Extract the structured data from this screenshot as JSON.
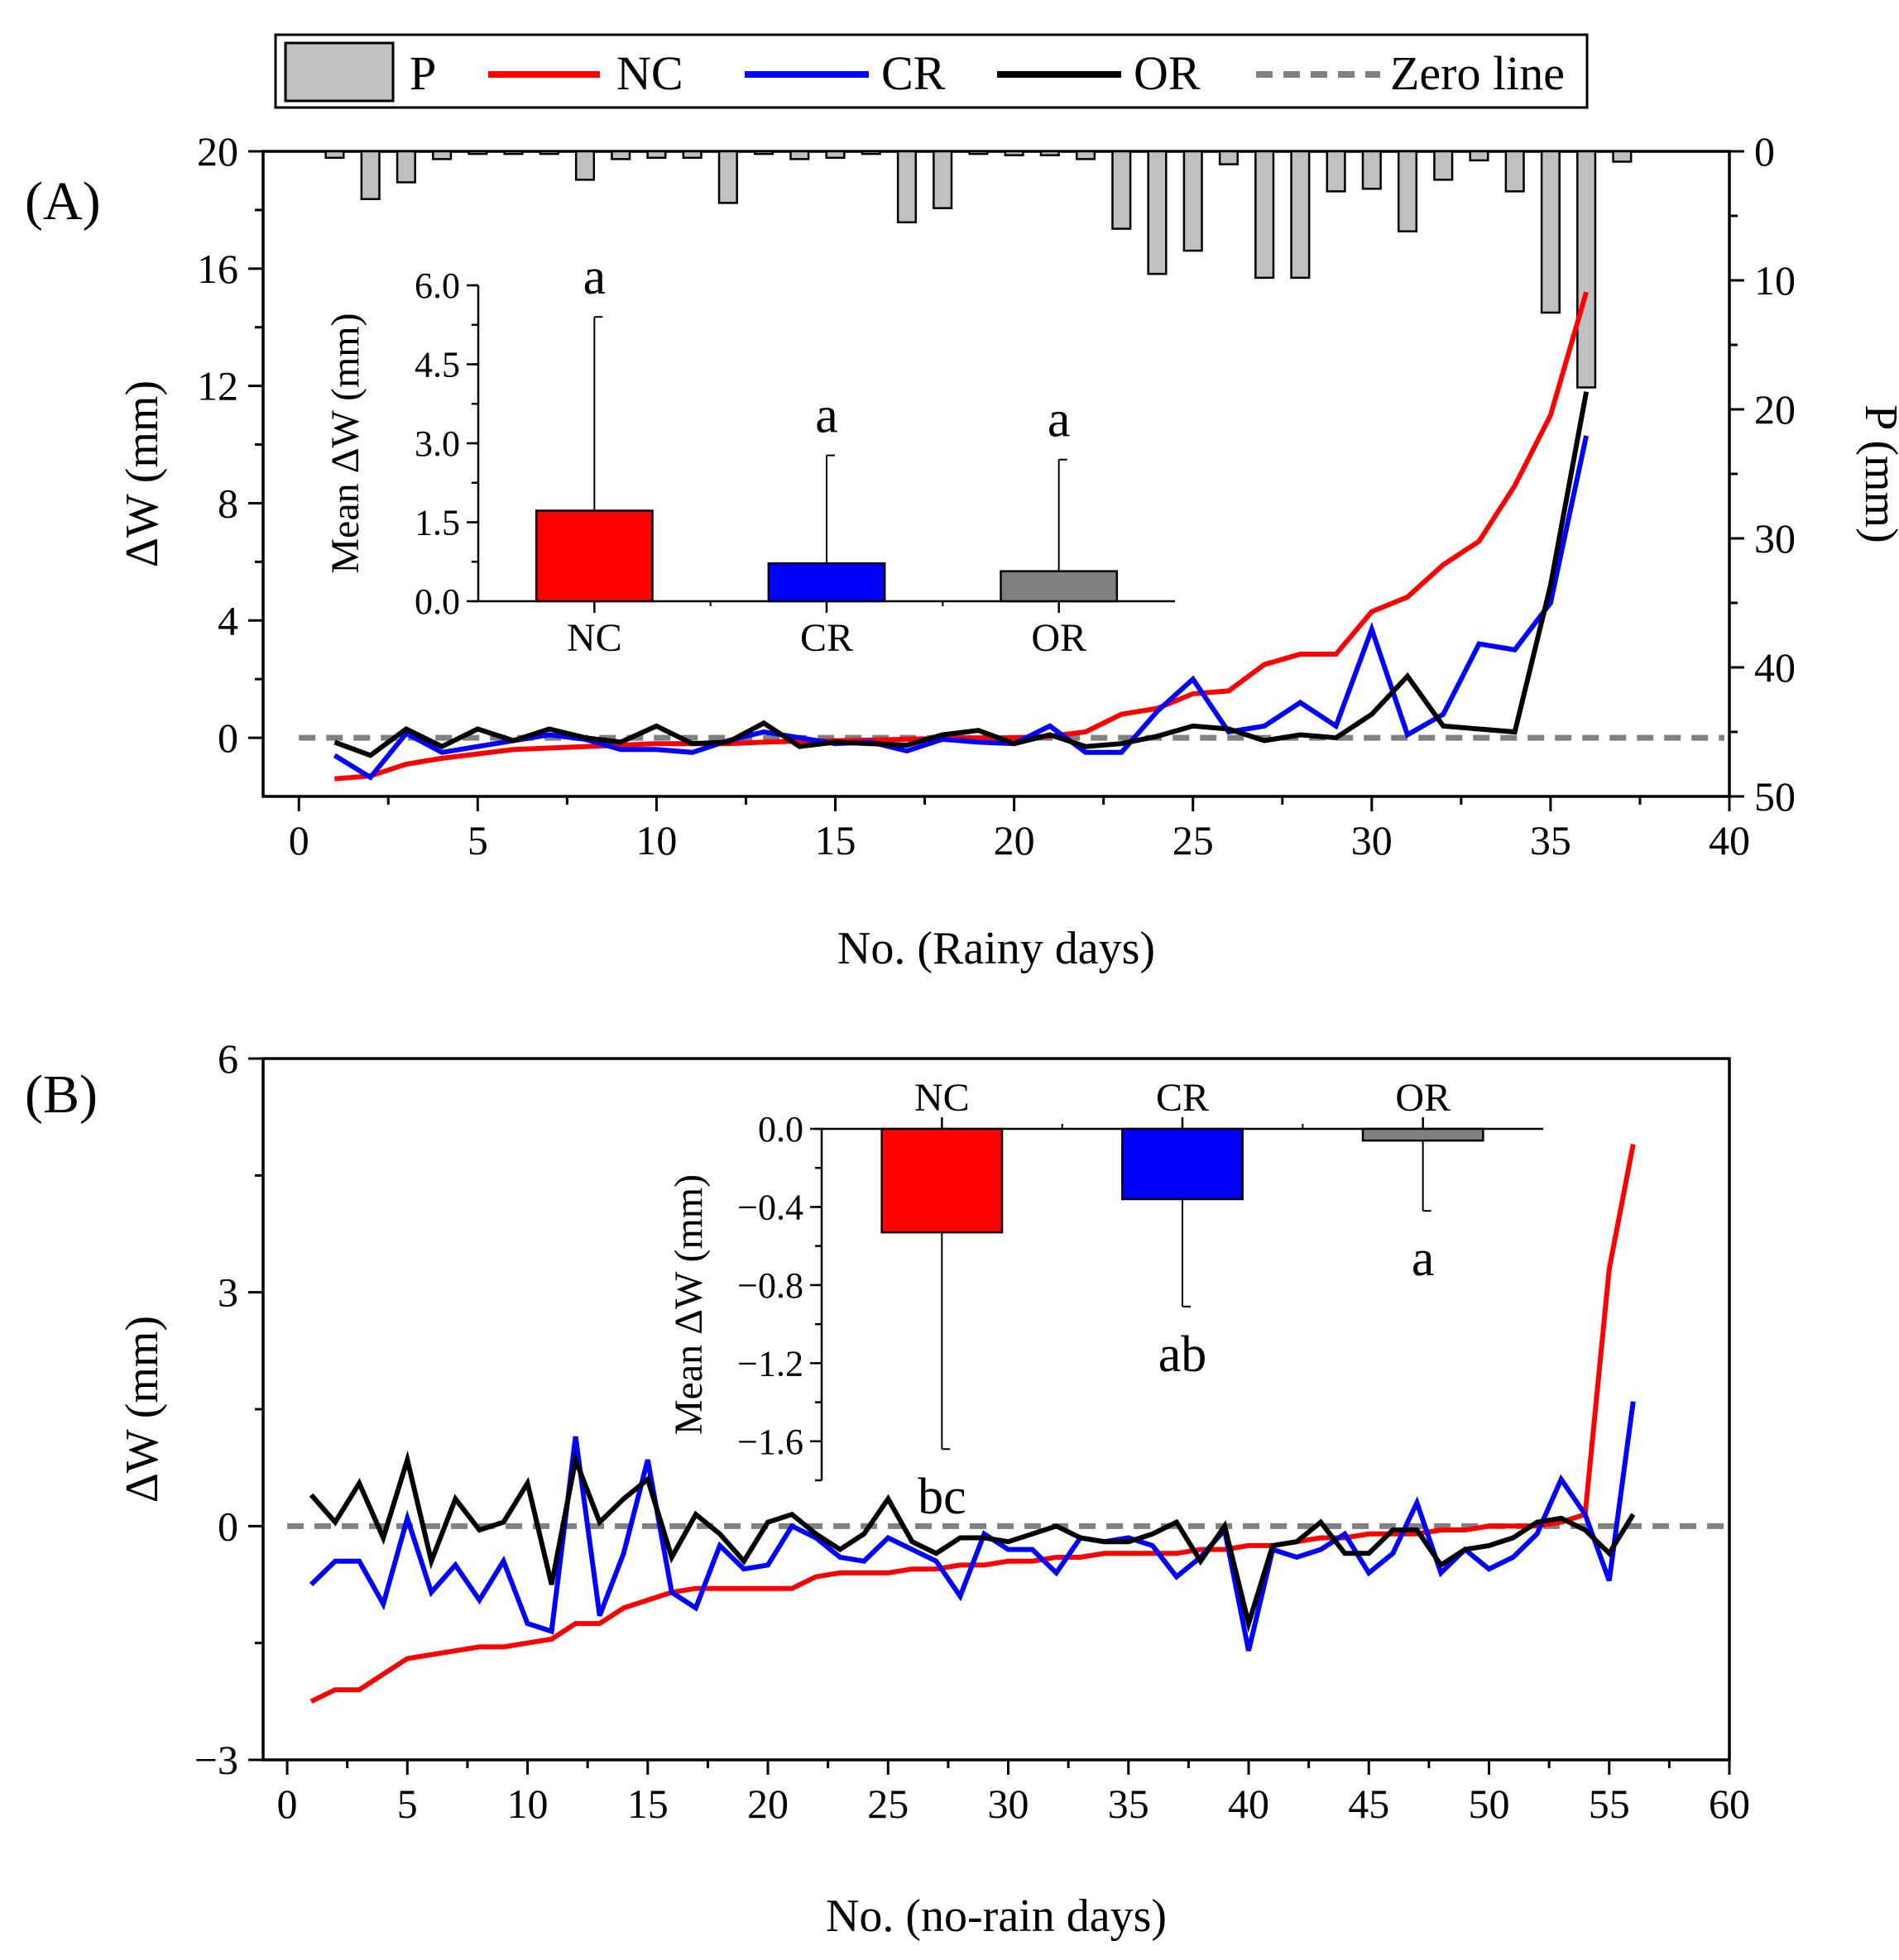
{
  "legend": {
    "items": [
      {
        "key": "P",
        "label": "P",
        "type": "bar",
        "color": "#c0c0c0"
      },
      {
        "key": "NC",
        "label": "NC",
        "type": "line",
        "color": "#ff0000"
      },
      {
        "key": "CR",
        "label": "CR",
        "type": "line",
        "color": "#0000ff"
      },
      {
        "key": "OR",
        "label": "OR",
        "type": "line",
        "color": "#000000"
      },
      {
        "key": "ZERO",
        "label": "Zero line",
        "type": "dash",
        "color": "#808080"
      }
    ]
  },
  "chart_data": [
    {
      "id": "A",
      "type": "line",
      "panel_label": "(A)",
      "xlabel": "No. (Rainy days)",
      "ylabel": "ΔW (mm)",
      "y2label": "P (mm)",
      "xlim": [
        -1,
        40
      ],
      "ylim": [
        -2,
        20
      ],
      "y2lim": [
        50,
        0
      ],
      "xticks": [
        0,
        5,
        10,
        15,
        20,
        25,
        30,
        35,
        40
      ],
      "yticks": [
        0,
        4,
        8,
        12,
        16,
        20
      ],
      "y2ticks": [
        0,
        10,
        20,
        30,
        40,
        50
      ],
      "x": [
        1,
        2,
        3,
        4,
        5,
        6,
        7,
        8,
        9,
        10,
        11,
        12,
        13,
        14,
        15,
        16,
        17,
        18,
        19,
        20,
        21,
        22,
        23,
        24,
        25,
        26,
        27,
        28,
        29,
        30,
        31,
        32,
        33,
        34,
        35,
        36
      ],
      "series": [
        {
          "name": "NC",
          "color": "#ff0000",
          "values": [
            -1.4,
            -1.3,
            -0.9,
            -0.7,
            -0.55,
            -0.4,
            -0.35,
            -0.3,
            -0.25,
            -0.2,
            -0.2,
            -0.2,
            -0.15,
            -0.12,
            -0.1,
            -0.08,
            -0.05,
            -0.02,
            0,
            0,
            0.05,
            0.2,
            0.8,
            1.0,
            1.5,
            1.6,
            2.5,
            2.85,
            2.85,
            4.3,
            4.8,
            5.9,
            6.7,
            8.6,
            11.0,
            15.2
          ]
        },
        {
          "name": "CR",
          "color": "#0000ff",
          "values": [
            -0.6,
            -1.35,
            0.15,
            -0.5,
            -0.3,
            -0.1,
            0.1,
            -0.05,
            -0.4,
            -0.4,
            -0.5,
            -0.1,
            0.2,
            0.0,
            -0.2,
            -0.15,
            -0.45,
            -0.05,
            -0.15,
            -0.2,
            0.4,
            -0.5,
            -0.5,
            0.9,
            2.0,
            0.2,
            0.4,
            1.2,
            0.4,
            3.7,
            0.1,
            0.8,
            3.2,
            3.0,
            4.6,
            10.3
          ]
        },
        {
          "name": "OR",
          "color": "#000000",
          "values": [
            -0.15,
            -0.6,
            0.3,
            -0.3,
            0.3,
            -0.1,
            0.3,
            0.0,
            -0.15,
            0.4,
            -0.2,
            -0.15,
            0.5,
            -0.3,
            -0.15,
            -0.2,
            -0.25,
            0.1,
            0.25,
            -0.2,
            0.1,
            -0.3,
            -0.2,
            0.05,
            0.4,
            0.3,
            -0.1,
            0.1,
            0.0,
            0.8,
            2.1,
            0.4,
            0.3,
            0.2,
            5.2,
            11.8
          ]
        }
      ],
      "precip": {
        "name": "P",
        "x": [
          1,
          2,
          3,
          4,
          5,
          6,
          7,
          8,
          9,
          10,
          11,
          12,
          13,
          14,
          15,
          16,
          17,
          18,
          19,
          20,
          21,
          22,
          23,
          24,
          25,
          26,
          27,
          28,
          29,
          30,
          31,
          32,
          33,
          34,
          35,
          36,
          37
        ],
        "values": [
          0.5,
          3.7,
          2.4,
          0.6,
          0.2,
          0.2,
          0.2,
          2.2,
          0.6,
          0.5,
          0.5,
          4.0,
          0.2,
          0.6,
          0.5,
          0.2,
          5.5,
          4.4,
          0.2,
          0.3,
          0.3,
          0.6,
          6.0,
          9.5,
          7.7,
          1.0,
          9.8,
          9.8,
          3.1,
          2.9,
          6.2,
          2.2,
          0.7,
          3.1,
          12.5,
          18.3,
          0.8
        ]
      },
      "inset": {
        "type": "bar",
        "categories": [
          "NC",
          "CR",
          "OR"
        ],
        "values": [
          1.72,
          0.72,
          0.57
        ],
        "errors": [
          3.68,
          2.05,
          2.12
        ],
        "letters": [
          "a",
          "a",
          "a"
        ],
        "colors": [
          "#ff0000",
          "#0000ff",
          "#808080"
        ],
        "ylabel": "Mean ΔW (mm)",
        "ylim": [
          0,
          6
        ],
        "yticks": [
          "0.0",
          "1.5",
          "3.0",
          "4.5",
          "6.0"
        ]
      }
    },
    {
      "id": "B",
      "type": "line",
      "panel_label": "(B)",
      "xlabel": "No. (no-rain days)",
      "ylabel": "ΔW (mm)",
      "xlim": [
        -1,
        60
      ],
      "ylim": [
        -3,
        6
      ],
      "xticks": [
        0,
        5,
        10,
        15,
        20,
        25,
        30,
        35,
        40,
        45,
        50,
        55,
        60
      ],
      "yticks": [
        -3,
        0,
        3,
        6
      ],
      "x": [
        1,
        2,
        3,
        4,
        5,
        6,
        7,
        8,
        9,
        10,
        11,
        12,
        13,
        14,
        15,
        16,
        17,
        18,
        19,
        20,
        21,
        22,
        23,
        24,
        25,
        26,
        27,
        28,
        29,
        30,
        31,
        32,
        33,
        34,
        35,
        36,
        37,
        38,
        39,
        40,
        41,
        42,
        43,
        44,
        45,
        46,
        47,
        48,
        49,
        50,
        51,
        52,
        53,
        54,
        55,
        56
      ],
      "series": [
        {
          "name": "NC",
          "color": "#ff0000",
          "values": [
            -2.25,
            -2.1,
            -2.1,
            -1.9,
            -1.7,
            -1.65,
            -1.6,
            -1.55,
            -1.55,
            -1.5,
            -1.45,
            -1.25,
            -1.25,
            -1.05,
            -0.95,
            -0.85,
            -0.8,
            -0.8,
            -0.8,
            -0.8,
            -0.8,
            -0.65,
            -0.6,
            -0.6,
            -0.6,
            -0.55,
            -0.55,
            -0.5,
            -0.5,
            -0.45,
            -0.45,
            -0.4,
            -0.4,
            -0.35,
            -0.35,
            -0.35,
            -0.35,
            -0.3,
            -0.3,
            -0.25,
            -0.25,
            -0.2,
            -0.15,
            -0.15,
            -0.1,
            -0.1,
            -0.1,
            -0.05,
            -0.05,
            0.0,
            0.0,
            0.0,
            0.05,
            0.15,
            3.3,
            4.9
          ]
        },
        {
          "name": "CR",
          "color": "#0000ff",
          "values": [
            -0.75,
            -0.45,
            -0.45,
            -1.0,
            0.1,
            -0.85,
            -0.5,
            -0.95,
            -0.45,
            -1.25,
            -1.35,
            1.15,
            -1.15,
            -0.35,
            0.85,
            -0.85,
            -1.05,
            -0.25,
            -0.55,
            -0.5,
            0.0,
            -0.15,
            -0.4,
            -0.45,
            -0.15,
            -0.3,
            -0.45,
            -0.9,
            -0.1,
            -0.3,
            -0.3,
            -0.6,
            -0.15,
            -0.2,
            -0.15,
            -0.25,
            -0.65,
            -0.4,
            -0.05,
            -1.6,
            -0.3,
            -0.4,
            -0.3,
            -0.1,
            -0.6,
            -0.35,
            0.3,
            -0.6,
            -0.3,
            -0.55,
            -0.4,
            -0.1,
            0.6,
            0.15,
            -0.7,
            1.6
          ]
        },
        {
          "name": "OR",
          "color": "#000000",
          "values": [
            0.4,
            0.05,
            0.55,
            -0.15,
            0.85,
            -0.45,
            0.35,
            -0.05,
            0.05,
            0.55,
            -0.75,
            0.85,
            0.05,
            0.35,
            0.6,
            -0.4,
            0.15,
            -0.1,
            -0.45,
            0.05,
            0.15,
            -0.1,
            -0.3,
            -0.1,
            0.35,
            -0.2,
            -0.35,
            -0.15,
            -0.15,
            -0.2,
            -0.1,
            0.0,
            -0.15,
            -0.2,
            -0.2,
            -0.1,
            0.05,
            -0.45,
            0.0,
            -1.25,
            -0.25,
            -0.2,
            0.05,
            -0.35,
            -0.35,
            -0.05,
            -0.05,
            -0.5,
            -0.3,
            -0.25,
            -0.15,
            0.05,
            0.1,
            -0.05,
            -0.35,
            0.15
          ]
        }
      ],
      "inset": {
        "type": "bar",
        "categories": [
          "NC",
          "CR",
          "OR"
        ],
        "values": [
          -0.53,
          -0.36,
          -0.06
        ],
        "errors": [
          1.11,
          0.55,
          0.36
        ],
        "letters": [
          "bc",
          "ab",
          "a"
        ],
        "colors": [
          "#ff0000",
          "#0000ff",
          "#808080"
        ],
        "ylabel": "Mean ΔW (mm)",
        "ylim": [
          -1.8,
          0.0
        ],
        "yticks": [
          "0.0",
          "-0.4",
          "-0.8",
          "-1.2",
          "-1.6"
        ]
      }
    }
  ]
}
